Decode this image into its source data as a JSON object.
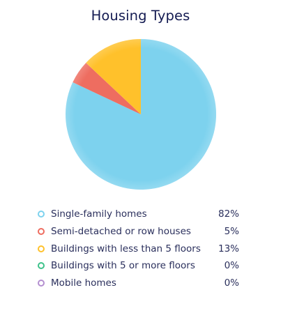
{
  "chart_data": {
    "type": "pie",
    "title": "Housing Types",
    "slices": [
      {
        "label": "Single-family homes",
        "value": 82,
        "display": "82%",
        "color": "#7dd2ee"
      },
      {
        "label": "Semi-detached or row houses",
        "value": 5,
        "display": "5%",
        "color": "#ee6d60"
      },
      {
        "label": "Buildings with less than 5 floors",
        "value": 13,
        "display": "13%",
        "color": "#ffc12b"
      },
      {
        "label": "Buildings with 5 or more floors",
        "value": 0,
        "display": "0%",
        "color": "#3ec28a"
      },
      {
        "label": "Mobile homes",
        "value": 0,
        "display": "0%",
        "color": "#b48fd0"
      }
    ],
    "legend_position": "bottom"
  }
}
